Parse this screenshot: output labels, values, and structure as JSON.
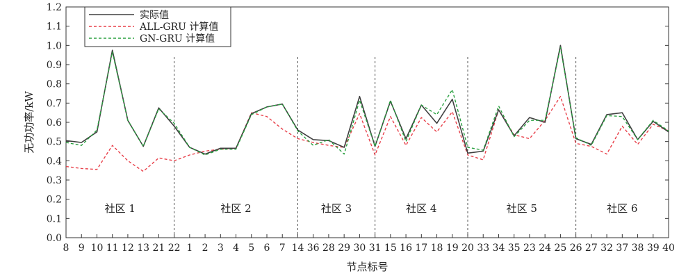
{
  "chart_data": {
    "type": "line",
    "xlabel": "节点标号",
    "ylabel": "无功功率/kW",
    "ylim": [
      0.0,
      1.2
    ],
    "yticks": [
      0.0,
      0.1,
      0.2,
      0.3,
      0.4,
      0.5,
      0.6,
      0.7,
      0.8,
      0.9,
      1.0,
      1.1,
      1.2
    ],
    "categories": [
      "8",
      "9",
      "10",
      "11",
      "12",
      "13",
      "21",
      "22",
      "1",
      "2",
      "3",
      "4",
      "5",
      "6",
      "7",
      "14",
      "36",
      "28",
      "29",
      "30",
      "31",
      "15",
      "16",
      "17",
      "18",
      "19",
      "20",
      "33",
      "34",
      "35",
      "23",
      "24",
      "25",
      "26",
      "27",
      "32",
      "37",
      "38",
      "39",
      "40"
    ],
    "series": [
      {
        "name": "实际值",
        "color": "#404040",
        "style": "solid",
        "values": [
          0.505,
          0.495,
          0.55,
          0.975,
          0.61,
          0.475,
          0.675,
          0.58,
          0.47,
          0.435,
          0.465,
          0.465,
          0.645,
          0.68,
          0.695,
          0.56,
          0.51,
          0.505,
          0.47,
          0.735,
          0.475,
          0.71,
          0.515,
          0.69,
          0.595,
          0.72,
          0.44,
          0.45,
          0.665,
          0.53,
          0.625,
          0.6,
          1.0,
          0.515,
          0.485,
          0.64,
          0.65,
          0.51,
          0.605,
          0.55
        ]
      },
      {
        "name": "ALL-GRU 计算值",
        "color": "#e8404a",
        "style": "dashed",
        "values": [
          0.37,
          0.36,
          0.355,
          0.48,
          0.4,
          0.345,
          0.415,
          0.4,
          0.43,
          0.45,
          0.46,
          0.465,
          0.65,
          0.63,
          0.565,
          0.515,
          0.495,
          0.48,
          0.47,
          0.645,
          0.43,
          0.63,
          0.48,
          0.625,
          0.55,
          0.655,
          0.43,
          0.405,
          0.665,
          0.535,
          0.515,
          0.61,
          0.735,
          0.49,
          0.475,
          0.435,
          0.58,
          0.485,
          0.59,
          0.555
        ]
      },
      {
        "name": "GN-GRU 计算值",
        "color": "#2aa040",
        "style": "dashed",
        "values": [
          0.495,
          0.48,
          0.56,
          0.965,
          0.61,
          0.475,
          0.67,
          0.595,
          0.47,
          0.43,
          0.46,
          0.46,
          0.64,
          0.68,
          0.695,
          0.555,
          0.48,
          0.51,
          0.435,
          0.715,
          0.475,
          0.715,
          0.5,
          0.69,
          0.64,
          0.77,
          0.47,
          0.455,
          0.685,
          0.525,
          0.61,
          0.61,
          0.99,
          0.52,
          0.48,
          0.635,
          0.63,
          0.51,
          0.61,
          0.555
        ]
      }
    ],
    "communities": [
      {
        "label": "社区 1",
        "start": 0,
        "end": 7
      },
      {
        "label": "社区 2",
        "start": 7,
        "end": 15
      },
      {
        "label": "社区 3",
        "start": 15,
        "end": 20
      },
      {
        "label": "社区 4",
        "start": 20,
        "end": 26
      },
      {
        "label": "社区 5",
        "start": 26,
        "end": 33
      },
      {
        "label": "社区 6",
        "start": 33,
        "end": 39
      }
    ],
    "dividers_at_index": [
      7,
      15,
      20,
      26,
      33
    ],
    "legend_position": "top-left",
    "grid": false
  }
}
